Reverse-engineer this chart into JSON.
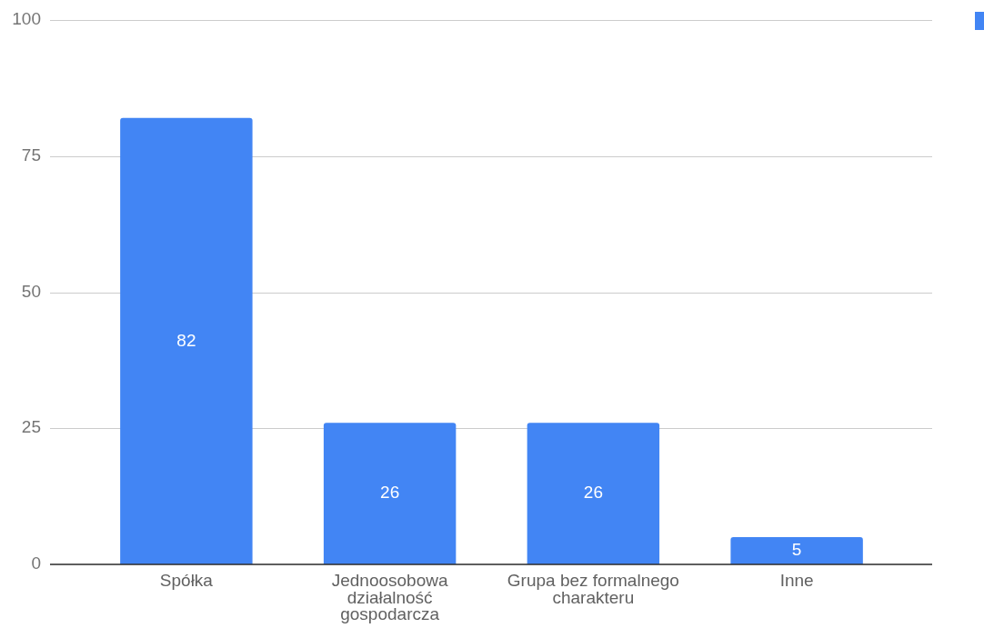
{
  "chart_data": {
    "type": "bar",
    "categories": [
      "Spółka",
      "Jednoosobowa działalność gospodarcza",
      "Grupa bez formalnego charakteru",
      "Inne"
    ],
    "series": [
      {
        "color": "#4285f4",
        "values": [
          82,
          26,
          26,
          5
        ]
      }
    ],
    "ylim": [
      0,
      100
    ],
    "yticks": [
      0,
      25,
      50,
      75,
      100
    ],
    "grid": "y",
    "data_labels": true
  }
}
